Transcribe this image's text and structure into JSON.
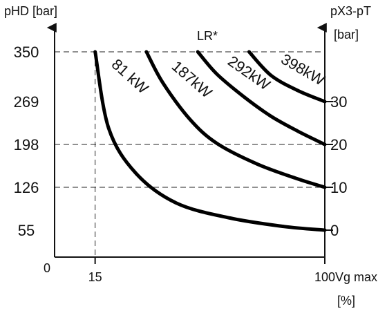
{
  "chart_data": {
    "type": "line",
    "title": "LR*",
    "left_axis": {
      "label": "pHD [bar]",
      "ticks": [
        55,
        126,
        198,
        269,
        350
      ],
      "lim": [
        0,
        350
      ]
    },
    "right_axis": {
      "label_line1": "pX3-pT",
      "label_line2": "[bar]",
      "ticks": [
        {
          "label": "0",
          "left_value": 55
        },
        {
          "label": "10",
          "left_value": 126
        },
        {
          "label": "20",
          "left_value": 198
        },
        {
          "label": "30",
          "left_value": 269
        }
      ]
    },
    "x_axis": {
      "label_line1": "Vg max",
      "label_line2": "[%]",
      "ticks": [
        "0",
        "15",
        "100"
      ],
      "lim": [
        0,
        100
      ]
    },
    "grid": "dashed",
    "series": [
      {
        "name": "81 kW",
        "x": [
          15,
          20,
          30,
          45,
          65,
          85,
          100
        ],
        "y": [
          350,
          225,
          150,
          100,
          75,
          61,
          55
        ]
      },
      {
        "name": "187kW",
        "x": [
          34,
          40,
          50,
          60,
          75,
          90,
          100
        ],
        "y": [
          350,
          300,
          240,
          200,
          165,
          140,
          126
        ]
      },
      {
        "name": "292kW",
        "x": [
          53,
          60,
          70,
          80,
          90,
          100
        ],
        "y": [
          350,
          314,
          277,
          245,
          220,
          198
        ]
      },
      {
        "name": "398kW",
        "x": [
          72,
          80,
          90,
          100
        ],
        "y": [
          350,
          312,
          287,
          269
        ]
      }
    ]
  }
}
